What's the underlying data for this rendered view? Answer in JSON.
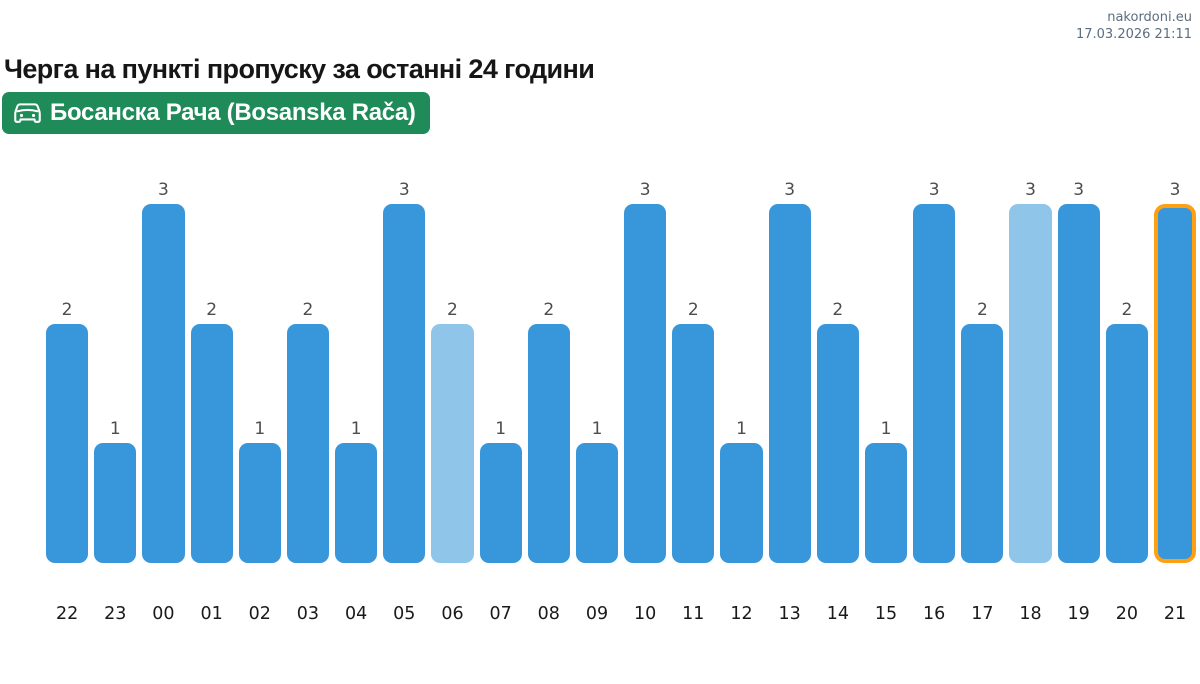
{
  "header": {
    "site": "nakordoni.eu",
    "timestamp": "17.03.2026 21:11"
  },
  "title": "Черга на пункті пропуску за останні 24 години",
  "badge": {
    "label": "Босанска Рача (Bosanska Rača)",
    "icon": "car-front-icon",
    "background_color": "#1f8b58",
    "text_color": "#ffffff"
  },
  "chart_data": {
    "type": "bar",
    "title": "Черга на пункті пропуску за останні 24 години",
    "categories": [
      "22",
      "23",
      "00",
      "01",
      "02",
      "03",
      "04",
      "05",
      "06",
      "07",
      "08",
      "09",
      "10",
      "11",
      "12",
      "13",
      "14",
      "15",
      "16",
      "17",
      "18",
      "19",
      "20",
      "21"
    ],
    "values": [
      2,
      1,
      3,
      2,
      1,
      2,
      1,
      3,
      2,
      1,
      2,
      1,
      3,
      2,
      1,
      3,
      2,
      1,
      3,
      2,
      3,
      3,
      2,
      3
    ],
    "xlabel": "",
    "ylabel": "",
    "ylim": [
      0,
      3
    ],
    "grid": false,
    "legend": false,
    "value_labels_shown": true,
    "bar_color": "#3897db",
    "muted_bar_color": "#90c5ea",
    "muted_indices": [
      8,
      20
    ],
    "highlighted_index": 23,
    "highlight_border_color": "#ffa014",
    "value_label_color": "#4d4d4d",
    "axis_label_color": "#1a1a1a"
  }
}
